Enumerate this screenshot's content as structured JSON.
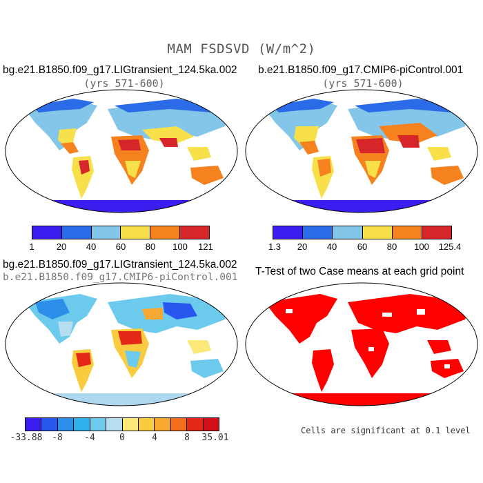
{
  "title": "MAM FSDSVD (W/m^2)",
  "panels": [
    {
      "title": "bg.e21.B1850.f09_g17.LIGtransient_124.5ka.002",
      "subtitle": "(yrs 571-600)"
    },
    {
      "title": "b.e21.B1850.f09_g17.CMIP6-piControl.001",
      "subtitle": "(yrs 571-600)"
    },
    {
      "title": "bg.e21.B1850.f09_g17.LIGtransient_124.5ka.002",
      "subtitle": "b.e21.B1850.f09_g17.CMIP6-piControl.001"
    },
    {
      "title": "T-Test of two Case means at each grid point",
      "subtitle": ""
    }
  ],
  "colorbars": {
    "panel1": {
      "labels": [
        "1",
        "20",
        "40",
        "60",
        "80",
        "100",
        "121"
      ],
      "colors": [
        "#3a1ef0",
        "#2c6be8",
        "#84c6ea",
        "#f7e04a",
        "#f5821e",
        "#d7262a"
      ]
    },
    "panel2": {
      "labels": [
        "1.3",
        "20",
        "40",
        "60",
        "80",
        "100",
        "125.4"
      ],
      "colors": [
        "#3a1ef0",
        "#2c6be8",
        "#84c6ea",
        "#f7e04a",
        "#f5821e",
        "#d7262a"
      ]
    },
    "diff": {
      "labels": [
        "-33.88",
        "-8",
        "-4",
        "0",
        "4",
        "8",
        "35.01"
      ],
      "colors": [
        "#3a1ef0",
        "#2a56f0",
        "#2c8ee8",
        "#30b0ea",
        "#6ccaec",
        "#b6def0",
        "#fde87a",
        "#f9cc40",
        "#f7a830",
        "#f36e1c",
        "#e42818",
        "#d10f18"
      ]
    }
  },
  "significance_note": "Cells are significant at 0.1 level",
  "colors": {
    "ocean": "#ffffff",
    "significant": "#ff0000",
    "antarctica_low": "#3a1ef0",
    "antarctica_diff": "#aed8f0"
  }
}
